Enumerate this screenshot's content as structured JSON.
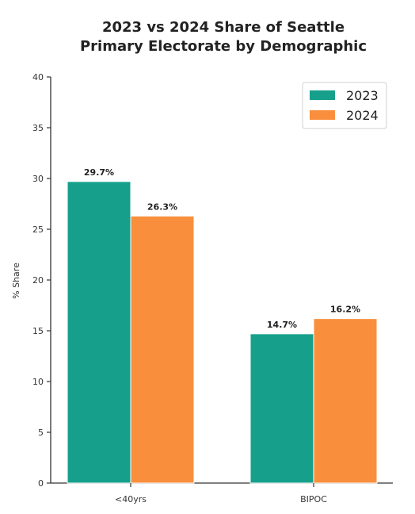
{
  "chart_data": {
    "type": "bar",
    "title": [
      "2023 vs 2024 Share of Seattle",
      "Primary Electorate by Demographic"
    ],
    "ylabel": "% Share",
    "xlabel": "",
    "categories": [
      "<40yrs",
      "BIPOC"
    ],
    "ylim": [
      0,
      40
    ],
    "yticks": [
      0,
      5,
      10,
      15,
      20,
      25,
      30,
      35,
      40
    ],
    "grid": false,
    "legend_position": "top-right",
    "series": [
      {
        "name": "2023",
        "color": "#16a08c",
        "values": [
          29.7,
          14.7
        ],
        "labels": [
          "29.7%",
          "14.7%"
        ]
      },
      {
        "name": "2024",
        "color": "#f98f3c",
        "values": [
          26.3,
          16.2
        ],
        "labels": [
          "26.3%",
          "16.2%"
        ]
      }
    ]
  }
}
